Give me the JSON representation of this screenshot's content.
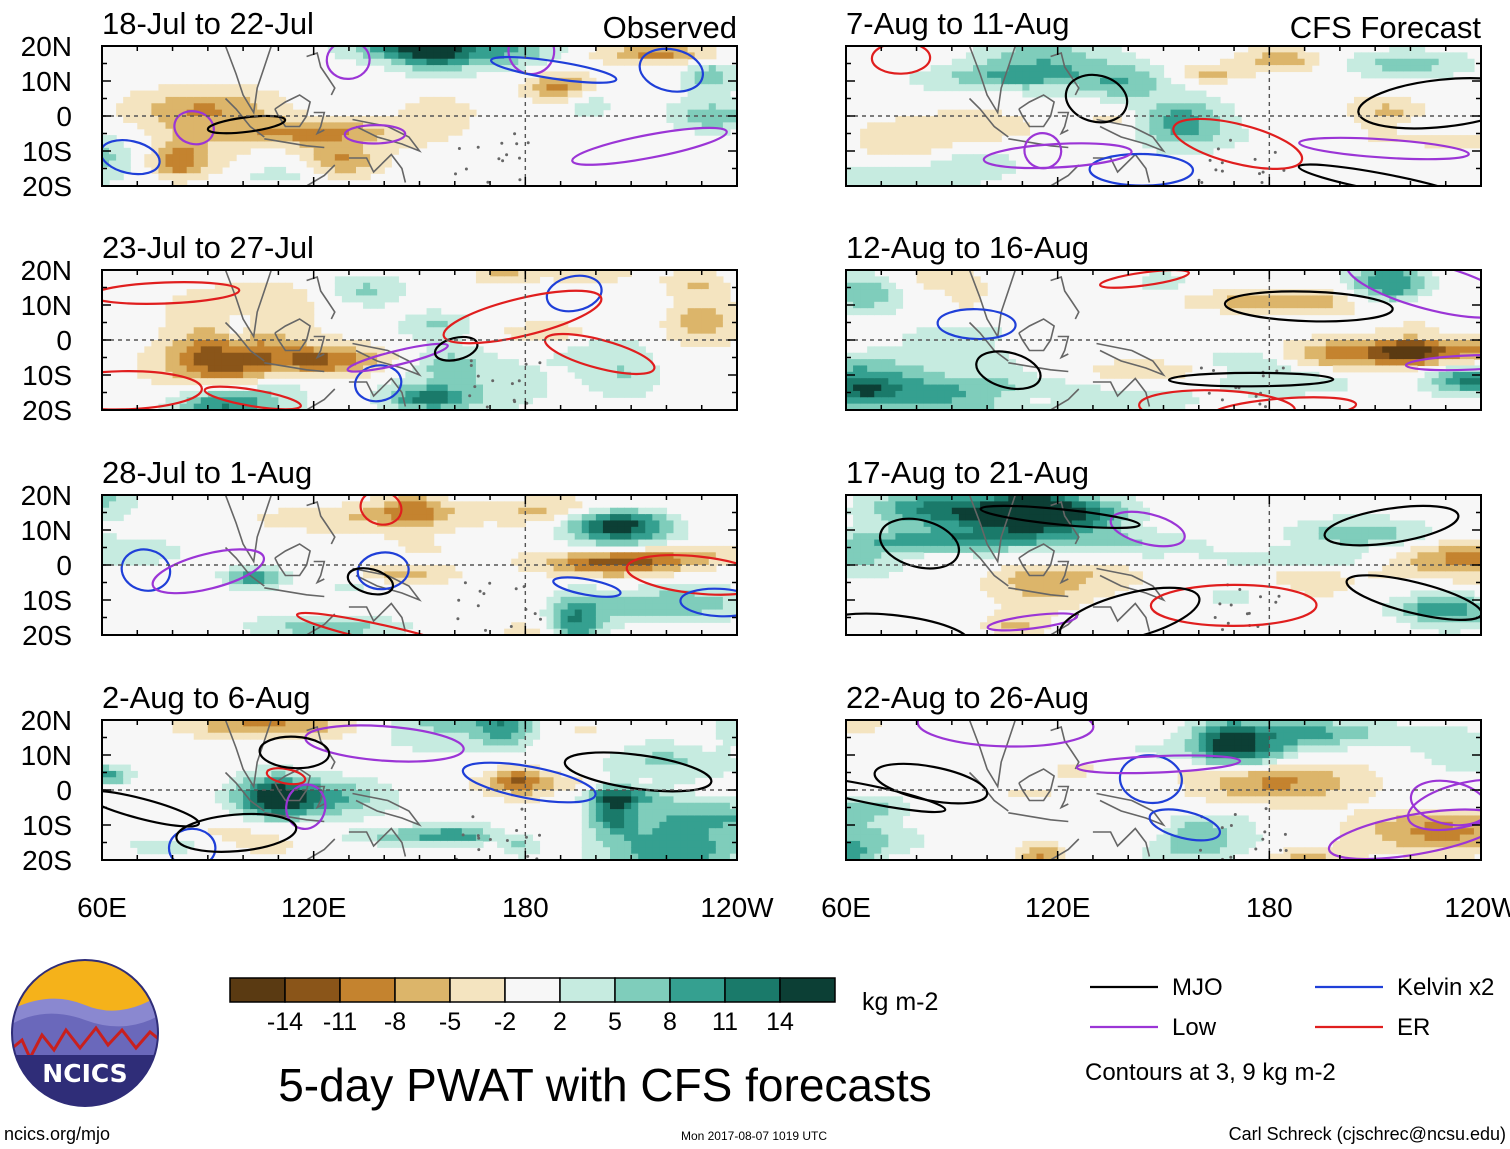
{
  "chart_data": {
    "type": "heatmap",
    "title": "5-day PWAT with CFS forecasts",
    "variable": "PWAT anomaly",
    "units": "kg m-2",
    "columns": [
      {
        "label": "Observed",
        "panels": [
          "18-Jul to 22-Jul",
          "23-Jul to 27-Jul",
          "28-Jul to 1-Aug",
          "2-Aug to 6-Aug"
        ]
      },
      {
        "label": "CFS Forecast",
        "panels": [
          "7-Aug to 11-Aug",
          "12-Aug to 16-Aug",
          "17-Aug to 21-Aug",
          "22-Aug to 26-Aug"
        ]
      }
    ],
    "x_axis": {
      "ticks": [
        "60E",
        "120E",
        "180",
        "120W"
      ],
      "values": [
        60,
        120,
        180,
        240
      ],
      "range": [
        60,
        240
      ]
    },
    "y_axis": {
      "ticks": [
        "20N",
        "10N",
        "0",
        "10S",
        "20S"
      ],
      "values": [
        20,
        10,
        0,
        -10,
        -20
      ],
      "range": [
        -20,
        20
      ]
    },
    "colorbar": {
      "labels": [
        "-14",
        "-11",
        "-8",
        "-5",
        "-2",
        "2",
        "5",
        "8",
        "11",
        "14"
      ],
      "bounds": [
        -14,
        -11,
        -8,
        -5,
        -2,
        2,
        5,
        8,
        11,
        14
      ],
      "colors": [
        "#5a3a12",
        "#8a5519",
        "#c4832f",
        "#dcb56a",
        "#f4e4c0",
        "#f7f7f7",
        "#c6ebe0",
        "#7fcdbb",
        "#35a090",
        "#1a7a6a",
        "#0c3f35"
      ]
    },
    "contour_legend": [
      {
        "name": "MJO",
        "color": "#000000"
      },
      {
        "name": "Kelvin x2",
        "color": "#1f3fd8"
      },
      {
        "name": "Low",
        "color": "#9b35d6"
      },
      {
        "name": "ER",
        "color": "#e01e1e"
      }
    ],
    "contour_note": "Contours at 3, 9 kg m-2"
  },
  "logo": {
    "text": "NCICS"
  },
  "footer": {
    "url": "ncics.org/mjo",
    "timestamp": "Mon 2017-08-07 1019 UTC",
    "author": "Carl Schreck (cjschrec@ncsu.edu)"
  }
}
